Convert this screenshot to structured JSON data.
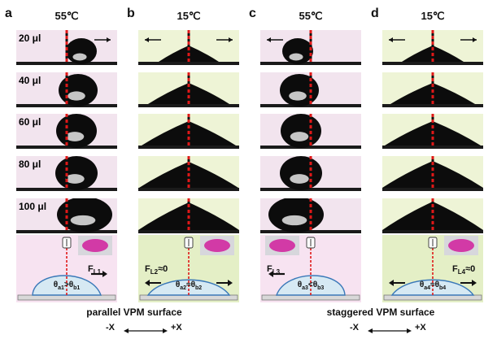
{
  "colors": {
    "warm_bg": "#f2e4ee",
    "cool_bg": "#eef4d6",
    "drop": "#0c0c0c",
    "needle": "#e01818",
    "schem_pink": "#f7e3f1",
    "schem_green": "#e4efc6",
    "drop_outline": "#3a78b8",
    "drop_fill": "#d6e9f3"
  },
  "panels": [
    {
      "letter": "a",
      "temp": "55℃",
      "bg": "warm",
      "arrow": "right",
      "volumes": [
        "20 μl",
        "40 μl",
        "60 μl",
        "80 μl",
        "100 μl"
      ],
      "force_label": "F",
      "force_sub": "L1",
      "force_suffix": "",
      "angle": {
        "t1": "θ",
        "s1": "a1",
        "rel": ">",
        "t2": "θ",
        "s2": "b1"
      }
    },
    {
      "letter": "b",
      "temp": "15℃",
      "bg": "cool",
      "arrow": "both",
      "volumes": [],
      "force_label": "F",
      "force_sub": "L2",
      "force_suffix": "≈0",
      "angle": {
        "t1": "θ",
        "s1": "a2",
        "rel": "≈",
        "t2": "θ",
        "s2": "b2"
      }
    },
    {
      "letter": "c",
      "temp": "55℃",
      "bg": "warm",
      "arrow": "left",
      "volumes": [],
      "force_label": "F",
      "force_sub": "L3",
      "force_suffix": "",
      "angle": {
        "t1": "θ",
        "s1": "a3",
        "rel": "<",
        "t2": "θ",
        "s2": "b3"
      }
    },
    {
      "letter": "d",
      "temp": "15℃",
      "bg": "cool",
      "arrow": "both",
      "volumes": [],
      "force_label": "F",
      "force_sub": "L4",
      "force_suffix": "≈0",
      "angle": {
        "t1": "θ",
        "s1": "a4",
        "rel": "≈",
        "t2": "θ",
        "s2": "b4"
      }
    }
  ],
  "captions": {
    "left": "parallel VPM surface",
    "right": "staggered VPM surface",
    "left_axis": {
      "minus": "-X",
      "plus": "+X"
    },
    "right_axis": {
      "minus": "-X",
      "plus": "+X"
    }
  }
}
